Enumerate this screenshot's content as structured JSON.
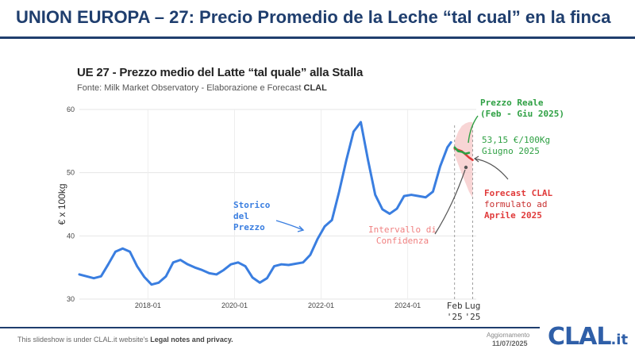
{
  "slide": {
    "title": "UNION EUROPA – 27: Precio Promedio de la Leche “tal cual” en la finca",
    "footer_prefix": "This slideshow is under CLAL.it website's ",
    "footer_link": "Legal notes and privacy.",
    "update_label": "Aggiornamento",
    "update_date": "11/07/2025",
    "logo_main": "CLAL",
    "logo_suffix": ".it"
  },
  "colors": {
    "title": "#1f3e6e",
    "history_line": "#3a7ee0",
    "real_price": "#2ea043",
    "forecast": "#e03a3a",
    "confidence_band": "#f6c7c7",
    "confidence_label": "#f08080"
  },
  "chart_data": {
    "type": "line",
    "title": "UE 27 - Prezzo medio del Latte “tal quale” alla Stalla",
    "subtitle_prefix": "Fonte: Milk Market Observatory - Elaborazione e Forecast ",
    "subtitle_brand": "CLAL",
    "ylabel": "€ x 100kg",
    "ylim": [
      30,
      60
    ],
    "y_ticks": [
      30,
      40,
      50,
      60
    ],
    "xlim": [
      "2016-06",
      "2025-08"
    ],
    "x_ticks": [
      {
        "date": "2018-01",
        "label": "2018-01"
      },
      {
        "date": "2020-01",
        "label": "2020-01"
      },
      {
        "date": "2022-01",
        "label": "2022-01"
      },
      {
        "date": "2024-01",
        "label": "2024-01"
      }
    ],
    "marker_ticks": [
      {
        "date": "2025-02",
        "line1": "Feb",
        "line2": "'25"
      },
      {
        "date": "2025-07",
        "line1": "Lug",
        "line2": "'25"
      }
    ],
    "series": [
      {
        "name": "Storico del Prezzo",
        "x": [
          "2016-06",
          "2016-08",
          "2016-10",
          "2016-12",
          "2017-02",
          "2017-04",
          "2017-06",
          "2017-08",
          "2017-10",
          "2017-12",
          "2018-02",
          "2018-04",
          "2018-06",
          "2018-08",
          "2018-10",
          "2018-12",
          "2019-02",
          "2019-04",
          "2019-06",
          "2019-08",
          "2019-10",
          "2019-12",
          "2020-02",
          "2020-04",
          "2020-06",
          "2020-08",
          "2020-10",
          "2020-12",
          "2021-02",
          "2021-04",
          "2021-06",
          "2021-08",
          "2021-10",
          "2021-12",
          "2022-02",
          "2022-04",
          "2022-06",
          "2022-08",
          "2022-10",
          "2022-12",
          "2023-02",
          "2023-04",
          "2023-06",
          "2023-08",
          "2023-10",
          "2023-12",
          "2024-02",
          "2024-04",
          "2024-06",
          "2024-08",
          "2024-10",
          "2024-12",
          "2025-01"
        ],
        "y": [
          33.9,
          33.6,
          33.3,
          33.6,
          35.5,
          37.5,
          38.0,
          37.5,
          35.2,
          33.5,
          32.3,
          32.6,
          33.6,
          35.8,
          36.2,
          35.5,
          35.0,
          34.6,
          34.1,
          33.9,
          34.6,
          35.5,
          35.8,
          35.2,
          33.4,
          32.6,
          33.3,
          35.2,
          35.5,
          35.4,
          35.6,
          35.8,
          37.0,
          39.5,
          41.5,
          42.5,
          47.0,
          52.0,
          56.5,
          58.0,
          52.0,
          46.5,
          44.2,
          43.5,
          44.3,
          46.3,
          46.5,
          46.3,
          46.1,
          47.0,
          51.0,
          54.0,
          54.8
        ]
      },
      {
        "name": "Prezzo Reale (Feb - Giu 2025)",
        "x": [
          "2025-02",
          "2025-03",
          "2025-04",
          "2025-05",
          "2025-06"
        ],
        "y": [
          54.0,
          53.4,
          53.3,
          53.0,
          53.15
        ]
      },
      {
        "name": "Forecast CLAL formulato ad Aprile 2025",
        "x": [
          "2025-02",
          "2025-03",
          "2025-04",
          "2025-05",
          "2025-06",
          "2025-07"
        ],
        "y": [
          53.8,
          53.6,
          53.4,
          52.9,
          52.4,
          52.0
        ]
      },
      {
        "name": "Intervallo di Confidenza",
        "x": [
          "2025-02",
          "2025-03",
          "2025-04",
          "2025-05",
          "2025-06",
          "2025-07"
        ],
        "upper": [
          55.0,
          56.5,
          57.4,
          57.8,
          58.0,
          58.0
        ],
        "lower": [
          52.8,
          51.3,
          49.8,
          48.4,
          47.0,
          46.0
        ]
      }
    ],
    "annotations": {
      "history": [
        "Storico",
        "del",
        "Prezzo"
      ],
      "real_price": [
        "Prezzo Reale",
        "(Feb - Giu 2025)"
      ],
      "real_value": [
        "53,15 €/100Kg",
        "Giugno 2025"
      ],
      "forecast": [
        "Forecast CLAL",
        "formulato ad",
        "Aprile 2025"
      ],
      "confidence": [
        "Intervallo di",
        "Confidenza"
      ]
    }
  }
}
